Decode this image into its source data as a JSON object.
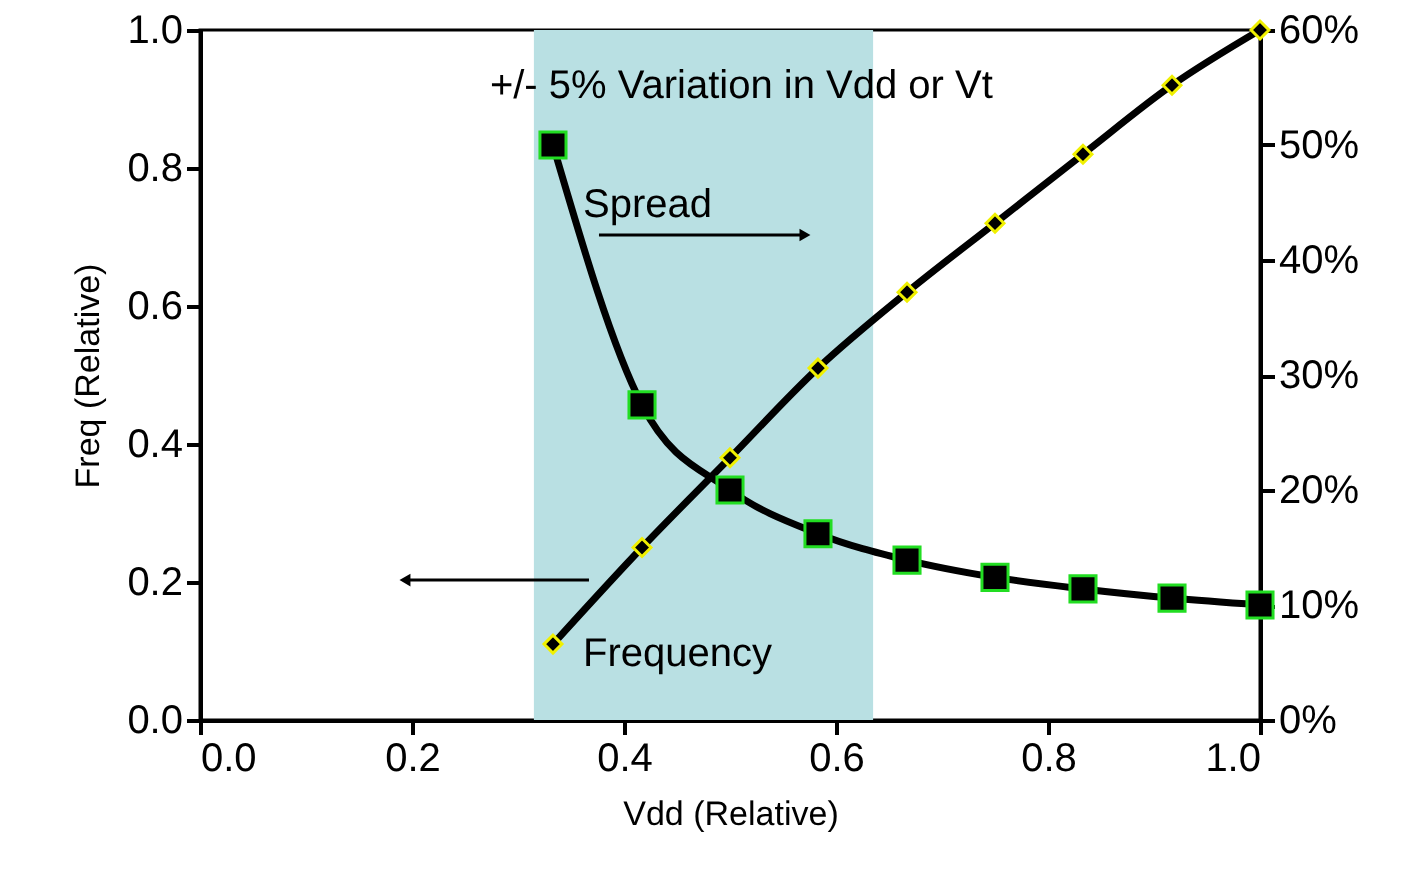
{
  "chart_data": {
    "type": "line",
    "xlabel": "Vdd (Relative)",
    "ylabel": "Freq (Relative)",
    "x": [
      0.333,
      0.417,
      0.5,
      0.583,
      0.667,
      0.75,
      0.833,
      0.917,
      1.0
    ],
    "series": [
      {
        "name": "Frequency",
        "color": "#000000",
        "marker": "diamond",
        "values": [
          0.11,
          0.25,
          0.38,
          0.51,
          0.62,
          0.72,
          0.82,
          0.92,
          1.0
        ]
      },
      {
        "name": "Spread",
        "color": "#000000",
        "marker": "square",
        "axis": "y2",
        "values": [
          50,
          27.4,
          20,
          16.2,
          13.9,
          12.4,
          11.4,
          10.6,
          10
        ]
      }
    ],
    "xlim": [
      0,
      1
    ],
    "xticks": [
      {
        "value": 0,
        "label": "0.0"
      },
      0.2,
      0.4,
      0.6,
      0.8,
      {
        "value": 1,
        "label": "1.0"
      }
    ],
    "ylim": [
      0,
      1
    ],
    "yticks": [
      {
        "value": 0,
        "label": "0.0"
      },
      0.2,
      0.4,
      0.6,
      0.8,
      {
        "value": 1,
        "label": "1.0"
      }
    ],
    "y2lim": [
      0,
      60
    ],
    "y2ticks": [
      {
        "value": 0,
        "label": "0%"
      },
      {
        "value": 10,
        "label": "10%"
      },
      {
        "value": 20,
        "label": "20%"
      },
      {
        "value": 30,
        "label": "30%"
      },
      {
        "value": 40,
        "label": "40%"
      },
      {
        "value": 50,
        "label": "50%"
      },
      {
        "value": 60,
        "label": "60%"
      }
    ],
    "bands": [
      {
        "axis": "x",
        "from": 0.315,
        "to": 0.635,
        "label": "+/- 5% Variation in Vdd or Vt",
        "color": "#b9e0e3"
      }
    ],
    "grid": false,
    "line_style": "solid"
  }
}
